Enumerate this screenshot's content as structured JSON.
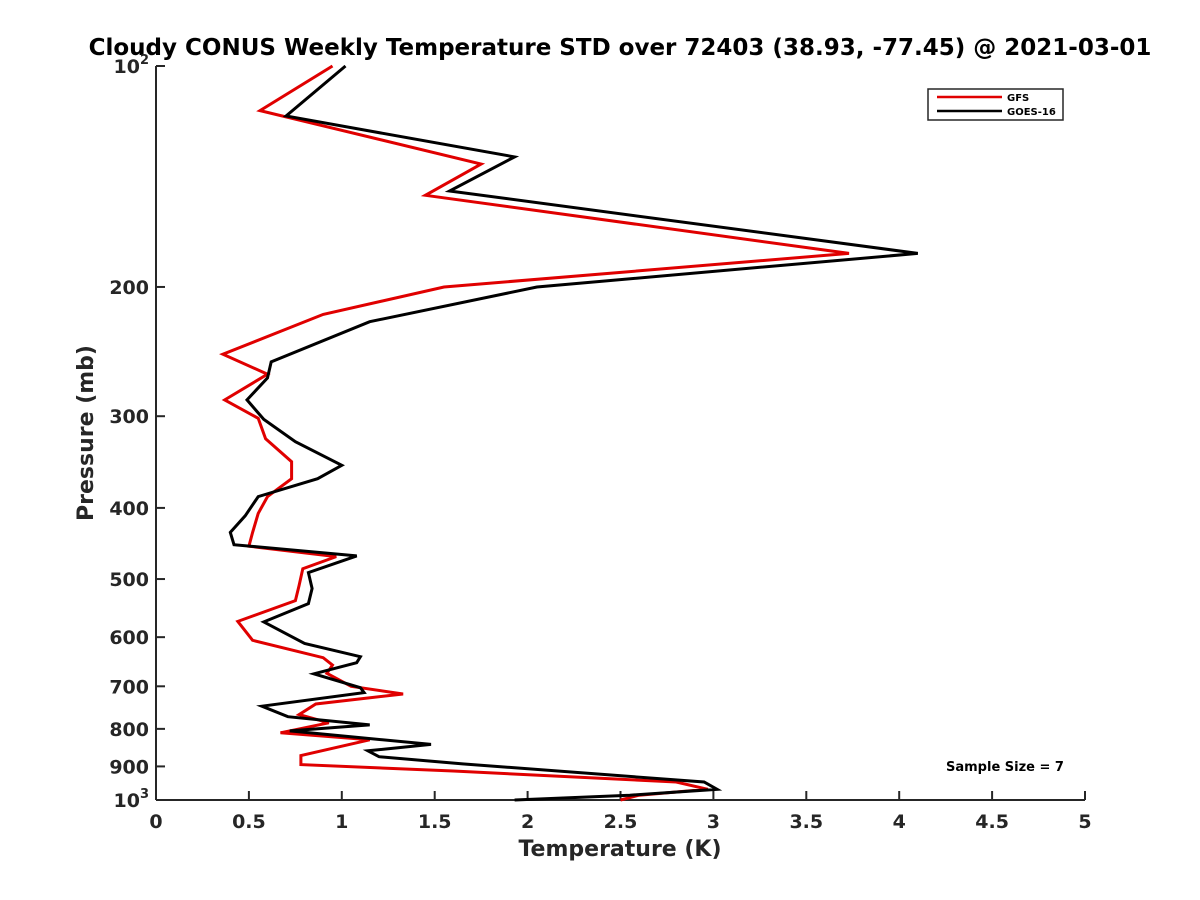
{
  "chart_data": {
    "type": "line",
    "title": "Cloudy CONUS Weekly Temperature STD over 72403 (38.93, -77.45) @ 2021-03-01",
    "xlabel": "Temperature (K)",
    "ylabel": "Pressure (mb)",
    "xlim": [
      0,
      5
    ],
    "ylim": [
      100,
      1000
    ],
    "y_scale": "log",
    "y_reversed": true,
    "x_ticks": [
      "0",
      "0.5",
      "1",
      "1.5",
      "2",
      "2.5",
      "3",
      "3.5",
      "4",
      "4.5",
      "5"
    ],
    "y_ticks": [
      {
        "value": 100,
        "base": "10",
        "exp": "2"
      },
      {
        "value": 200,
        "label": "200"
      },
      {
        "value": 300,
        "label": "300"
      },
      {
        "value": 400,
        "label": "400"
      },
      {
        "value": 500,
        "label": "500"
      },
      {
        "value": 600,
        "label": "600"
      },
      {
        "value": 700,
        "label": "700"
      },
      {
        "value": 800,
        "label": "800"
      },
      {
        "value": 900,
        "label": "900"
      },
      {
        "value": 1000,
        "base": "10",
        "exp": "3"
      }
    ],
    "grid": false,
    "legend_position": "top-right",
    "annotation": "Sample Size = 7",
    "series": [
      {
        "name": "GFS",
        "color": "#e00000",
        "points": [
          [
            0.95,
            100
          ],
          [
            0.56,
            115
          ],
          [
            1.75,
            136
          ],
          [
            1.45,
            150
          ],
          [
            3.73,
            180
          ],
          [
            1.55,
            200
          ],
          [
            0.9,
            218
          ],
          [
            0.36,
            247
          ],
          [
            0.6,
            263
          ],
          [
            0.37,
            285
          ],
          [
            0.55,
            302
          ],
          [
            0.59,
            322
          ],
          [
            0.73,
            346
          ],
          [
            0.73,
            365
          ],
          [
            0.6,
            386
          ],
          [
            0.55,
            407
          ],
          [
            0.52,
            432
          ],
          [
            0.5,
            451
          ],
          [
            0.97,
            466
          ],
          [
            0.79,
            484
          ],
          [
            0.77,
            510
          ],
          [
            0.75,
            535
          ],
          [
            0.44,
            571
          ],
          [
            0.52,
            606
          ],
          [
            0.9,
            640
          ],
          [
            0.95,
            655
          ],
          [
            0.92,
            672
          ],
          [
            1.05,
            700
          ],
          [
            1.33,
            717
          ],
          [
            0.86,
            740
          ],
          [
            0.77,
            765
          ],
          [
            0.93,
            785
          ],
          [
            0.67,
            810
          ],
          [
            1.15,
            828
          ],
          [
            0.78,
            870
          ],
          [
            0.78,
            895
          ],
          [
            1.6,
            913
          ],
          [
            2.8,
            945
          ],
          [
            2.97,
            967
          ],
          [
            2.6,
            985
          ],
          [
            2.5,
            1000
          ]
        ]
      },
      {
        "name": "GOES-16",
        "color": "#000000",
        "points": [
          [
            1.02,
            100
          ],
          [
            0.7,
            117
          ],
          [
            1.93,
            133
          ],
          [
            1.58,
            148
          ],
          [
            4.1,
            180
          ],
          [
            2.05,
            200
          ],
          [
            1.15,
            223
          ],
          [
            0.62,
            253
          ],
          [
            0.6,
            266
          ],
          [
            0.49,
            285
          ],
          [
            0.58,
            303
          ],
          [
            0.75,
            325
          ],
          [
            1.0,
            350
          ],
          [
            0.87,
            365
          ],
          [
            0.55,
            386
          ],
          [
            0.48,
            410
          ],
          [
            0.4,
            432
          ],
          [
            0.42,
            449
          ],
          [
            1.08,
            465
          ],
          [
            0.82,
            490
          ],
          [
            0.84,
            515
          ],
          [
            0.82,
            540
          ],
          [
            0.58,
            572
          ],
          [
            0.8,
            612
          ],
          [
            1.1,
            638
          ],
          [
            1.08,
            650
          ],
          [
            0.85,
            673
          ],
          [
            1.1,
            703
          ],
          [
            1.12,
            714
          ],
          [
            0.57,
            745
          ],
          [
            0.71,
            770
          ],
          [
            1.15,
            790
          ],
          [
            0.72,
            805
          ],
          [
            1.48,
            840
          ],
          [
            1.14,
            857
          ],
          [
            1.2,
            873
          ],
          [
            1.65,
            893
          ],
          [
            2.95,
            945
          ],
          [
            3.02,
            967
          ],
          [
            2.55,
            985
          ],
          [
            1.93,
            1000
          ]
        ]
      }
    ]
  }
}
